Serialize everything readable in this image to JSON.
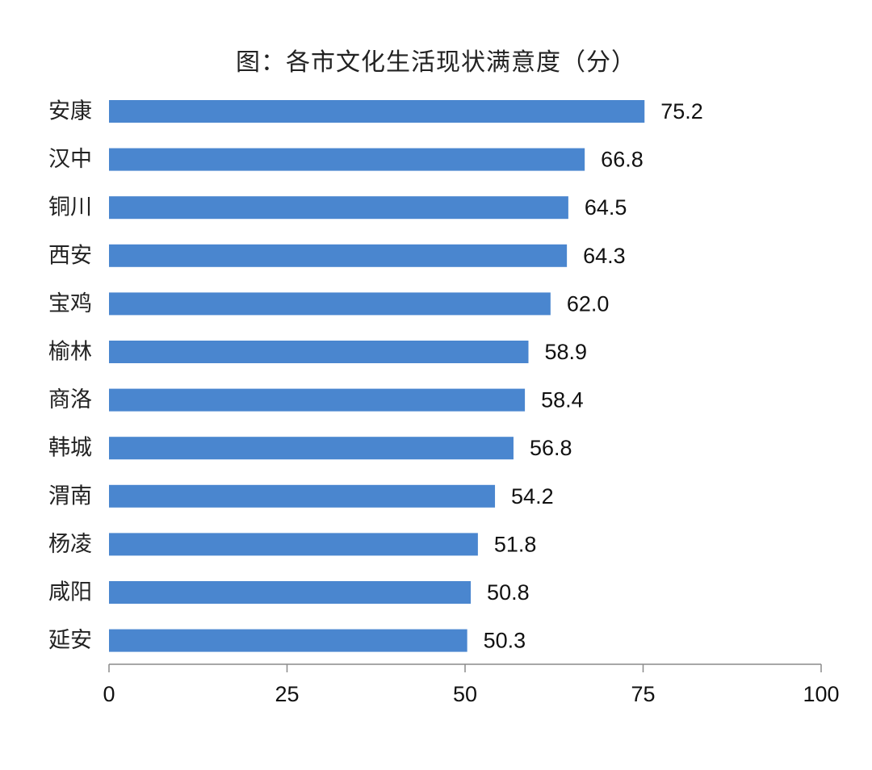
{
  "chart_data": {
    "type": "bar",
    "orientation": "horizontal",
    "title": "图：各市文化生活现状满意度（分）",
    "categories": [
      "安康",
      "汉中",
      "铜川",
      "西安",
      "宝鸡",
      "榆林",
      "商洛",
      "韩城",
      "渭南",
      "杨凌",
      "咸阳",
      "延安"
    ],
    "values": [
      75.2,
      66.8,
      64.5,
      64.3,
      62.0,
      58.9,
      58.4,
      56.8,
      54.2,
      51.8,
      50.8,
      50.3
    ],
    "value_labels": [
      "75.2",
      "66.8",
      "64.5",
      "64.3",
      "62.0",
      "58.9",
      "58.4",
      "56.8",
      "54.2",
      "51.8",
      "50.8",
      "50.3"
    ],
    "xlim": [
      0,
      100
    ],
    "x_ticks": [
      0,
      25,
      50,
      75,
      100
    ],
    "x_tick_labels": [
      "0",
      "25",
      "50",
      "75",
      "100"
    ],
    "xlabel": "",
    "ylabel": "",
    "grid": false,
    "legend": "none",
    "bar_color": "#4a86cf"
  }
}
